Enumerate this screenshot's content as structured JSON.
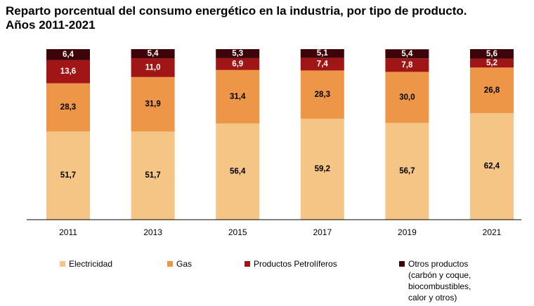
{
  "chart_data": {
    "type": "bar",
    "stacked": true,
    "title": "Reparto porcentual del consumo energético en la industria, por tipo de producto.\nAños 2011-2021",
    "xlabel": "",
    "ylabel": "",
    "ylim": [
      0,
      100
    ],
    "categories": [
      "2011",
      "2013",
      "2015",
      "2017",
      "2019",
      "2021"
    ],
    "series": [
      {
        "name": "Electricidad",
        "color": "#f5c585",
        "values": [
          51.7,
          51.7,
          56.4,
          59.2,
          56.7,
          62.4
        ],
        "labels": [
          "51,7",
          "51,7",
          "56,4",
          "59,2",
          "56,7",
          "62,4"
        ]
      },
      {
        "name": "Gas",
        "color": "#ee9648",
        "values": [
          28.3,
          31.9,
          31.4,
          28.3,
          30.0,
          26.8
        ],
        "labels": [
          "28,3",
          "31,9",
          "31,4",
          "28,3",
          "30,0",
          "26,8"
        ]
      },
      {
        "name": "Productos Petrolíferos",
        "color": "#a01515",
        "values": [
          13.6,
          11.0,
          6.9,
          7.4,
          7.8,
          5.2
        ],
        "labels": [
          "13,6",
          "11,0",
          "6,9",
          "7,4",
          "7,8",
          "5,2"
        ]
      },
      {
        "name": "Otros productos\n(carbón y coque,\nbiocombustibles,\ncalor y otros)",
        "color": "#3d0509",
        "values": [
          6.4,
          5.4,
          5.3,
          5.1,
          5.4,
          5.6
        ],
        "labels": [
          "6,4",
          "5,4",
          "5,3",
          "5,1",
          "5,4",
          "5,6"
        ]
      }
    ],
    "label_colors": [
      "#000000",
      "#000000",
      "#ffffff",
      "#ffffff"
    ],
    "legend_position": "bottom",
    "grid": false
  }
}
